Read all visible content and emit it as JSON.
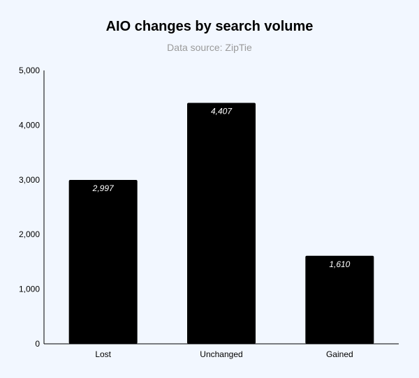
{
  "chart_data": {
    "type": "bar",
    "title": "AIO changes by search volume",
    "subtitle": "Data source: ZipTie",
    "categories": [
      "Lost",
      "Unchanged",
      "Gained"
    ],
    "values": [
      2997,
      4407,
      1610
    ],
    "data_labels": [
      "2,997",
      "4,407",
      "1,610"
    ],
    "y_ticks": [
      0,
      1000,
      2000,
      3000,
      4000,
      5000
    ],
    "y_tick_labels": [
      "0",
      "1,000",
      "2,000",
      "3,000",
      "4,000",
      "5,000"
    ],
    "ylim": [
      0,
      5000
    ],
    "xlabel": "",
    "ylabel": "",
    "grid": false,
    "legend": "none",
    "bar_color": "#000000",
    "label_color": "#ffffff",
    "background_color": "#f2f7ff"
  }
}
